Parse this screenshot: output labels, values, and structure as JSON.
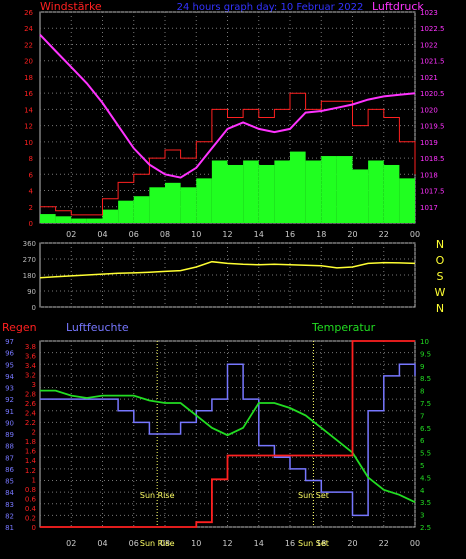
{
  "header": {
    "left_label": "Windstärke",
    "center_title": "24 hours graph day: 10 Februar 2022",
    "right_label": "Luftdruck"
  },
  "colors": {
    "wind_gust": "#ff2020",
    "wind_mean": "#20ff20",
    "pressure": "#ff33ff",
    "direction": "#ffff33",
    "humidity": "#7777ff",
    "temperature": "#22dd22",
    "rain": "#ff2020",
    "sun_marker": "#ffff66",
    "grid": "#777777",
    "frame": "#bbbbbb"
  },
  "x_tick_labels": [
    "02",
    "04",
    "06",
    "08",
    "10",
    "12",
    "14",
    "16",
    "18",
    "20",
    "22",
    "00"
  ],
  "chart_data": [
    {
      "type": "line",
      "name": "wind-pressure",
      "x_hours": [
        0,
        1,
        2,
        3,
        4,
        5,
        6,
        7,
        8,
        9,
        10,
        11,
        12,
        13,
        14,
        15,
        16,
        17,
        18,
        19,
        20,
        21,
        22,
        23,
        24
      ],
      "series": [
        {
          "name": "Windstärke",
          "axis": "left",
          "values": [
            2,
            1.5,
            1,
            1,
            3,
            5,
            6,
            8,
            9,
            8,
            10,
            14,
            13,
            14,
            13,
            14,
            16,
            14,
            15,
            15,
            12,
            14,
            13,
            10,
            6
          ]
        },
        {
          "name": "Luftdruck",
          "axis": "right",
          "values": [
            1022.3,
            1021.8,
            1021.3,
            1020.8,
            1020.2,
            1019.5,
            1018.8,
            1018.3,
            1018.0,
            1017.9,
            1018.2,
            1018.8,
            1019.4,
            1019.6,
            1019.4,
            1019.3,
            1019.4,
            1019.9,
            1019.95,
            1020.05,
            1020.15,
            1020.3,
            1020.4,
            1020.45,
            1020.5
          ]
        }
      ],
      "left_axis": {
        "ylim": [
          0,
          26
        ],
        "ticks": [
          0,
          2,
          4,
          6,
          8,
          10,
          12,
          14,
          16,
          18,
          20,
          22,
          24,
          26
        ]
      },
      "right_axis": {
        "ylim": [
          1016.5,
          1023
        ],
        "ticks": [
          "1017",
          "1017.5",
          "1018",
          "1018.5",
          "1019",
          "1019.5",
          "1020",
          "1020.5",
          "1021",
          "1021.5",
          "1022",
          "1022.5",
          "1023"
        ]
      }
    },
    {
      "type": "line",
      "name": "wind-direction",
      "x_hours": [
        0,
        1,
        2,
        3,
        4,
        5,
        6,
        7,
        8,
        9,
        10,
        11,
        12,
        13,
        14,
        15,
        16,
        17,
        18,
        19,
        20,
        21,
        22,
        23,
        24
      ],
      "series": [
        {
          "name": "Windrichtung",
          "values": [
            165,
            170,
            175,
            180,
            185,
            190,
            192,
            195,
            200,
            205,
            225,
            255,
            245,
            240,
            238,
            240,
            238,
            235,
            232,
            220,
            225,
            245,
            250,
            248,
            245
          ]
        }
      ],
      "ylim": [
        0,
        360
      ],
      "left_ticks": [
        "0",
        "90",
        "180",
        "270",
        "360"
      ],
      "right_ticks": [
        "N",
        "W",
        "S",
        "O",
        "N"
      ]
    },
    {
      "type": "line",
      "name": "rain-humidity-temperature",
      "x_hours": [
        0,
        1,
        2,
        3,
        4,
        5,
        6,
        7,
        8,
        9,
        10,
        11,
        12,
        13,
        14,
        15,
        16,
        17,
        18,
        19,
        20,
        21,
        22,
        23,
        24
      ],
      "series": [
        {
          "name": "Regen",
          "axis": "left",
          "values": [
            0,
            0,
            0,
            0,
            0,
            0,
            0,
            0,
            0,
            0,
            0.1,
            1.0,
            1.5,
            1.5,
            1.5,
            1.5,
            1.5,
            1.5,
            1.5,
            1.5,
            3.9,
            3.9,
            3.9,
            3.9,
            3.9
          ]
        },
        {
          "name": "Luftfeuchte",
          "axis": "left-inner",
          "values": [
            92,
            92,
            92,
            92,
            92,
            91,
            90,
            89,
            89,
            90,
            91,
            92,
            95,
            92,
            88,
            87,
            86,
            85,
            84,
            84,
            82,
            91,
            94,
            95,
            94
          ]
        },
        {
          "name": "Temperatur",
          "axis": "right",
          "values": [
            8.0,
            8.0,
            7.8,
            7.7,
            7.8,
            7.8,
            7.8,
            7.6,
            7.5,
            7.5,
            7.0,
            6.5,
            6.2,
            6.5,
            7.5,
            7.5,
            7.3,
            7.0,
            6.5,
            6.0,
            5.5,
            4.5,
            4.0,
            3.8,
            3.5
          ]
        }
      ],
      "left_axis": {
        "label": "Regen",
        "ticks": [
          "0",
          "0.2",
          "0.4",
          "0.6",
          "0.8",
          "1",
          "1.2",
          "1.4",
          "1.6",
          "1.8",
          "2",
          "2.2",
          "2.4",
          "2.6",
          "2.8",
          "3",
          "3.2",
          "3.4",
          "3.6",
          "3.8"
        ],
        "ylim": [
          0,
          3.9
        ]
      },
      "left_inner_axis": {
        "label": "Luftfeuchte",
        "ticks": [
          "81",
          "82",
          "83",
          "84",
          "85",
          "86",
          "87",
          "88",
          "89",
          "90",
          "91",
          "92",
          "93",
          "94",
          "95",
          "96",
          "97"
        ],
        "ylim": [
          81,
          97
        ]
      },
      "right_axis": {
        "label": "Temperatur",
        "ticks": [
          "2.5",
          "3",
          "3.5",
          "4",
          "4.5",
          "5",
          "5.5",
          "6",
          "6.5",
          "7",
          "7.5",
          "8",
          "8.5",
          "9",
          "9.5",
          "10"
        ],
        "ylim": [
          2.5,
          10
        ]
      },
      "annotations": [
        {
          "text": "Sun Rise",
          "x_hour": 7.5
        },
        {
          "text": "Sun Set",
          "x_hour": 17.5
        }
      ],
      "bottom_marker_labels": [
        {
          "text": "Sun Rise",
          "x_hour": 7.5
        },
        {
          "text": "Sun Set",
          "x_hour": 17.5
        }
      ]
    }
  ],
  "humidity_label": "Luftfeuchte",
  "temperature_label": "Temperatur",
  "rain_label": "Regen"
}
